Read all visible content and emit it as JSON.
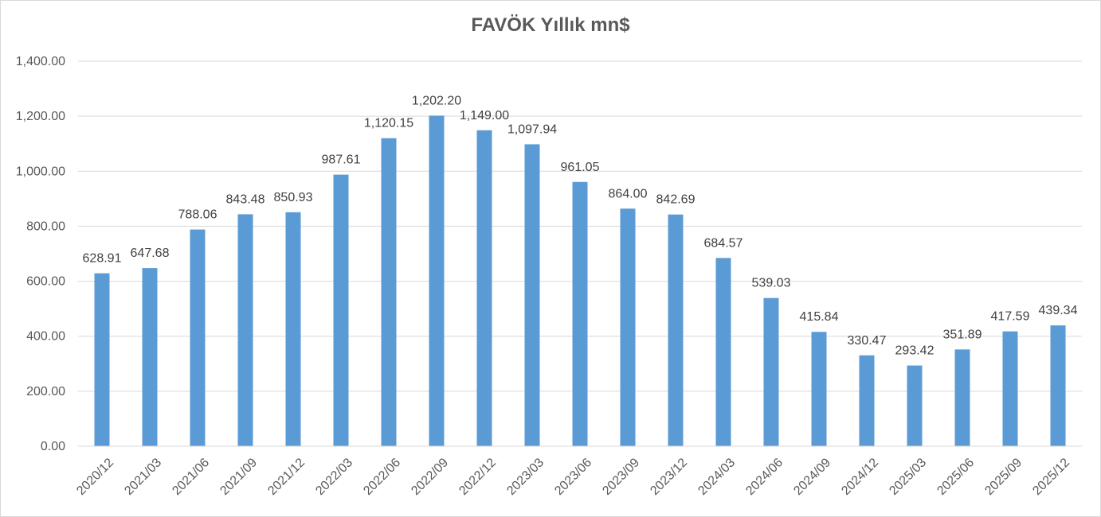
{
  "chart_data": {
    "type": "bar",
    "title": "FAVÖK Yıllık mn$",
    "xlabel": "",
    "ylabel": "",
    "ylim": [
      0,
      1400
    ],
    "yticks": [
      "0.00",
      "200.00",
      "400.00",
      "600.00",
      "800.00",
      "1,000.00",
      "1,200.00",
      "1,400.00"
    ],
    "grid": true,
    "legend": "none",
    "bar_color": "#5b9bd5",
    "categories": [
      "2020/12",
      "2021/03",
      "2021/06",
      "2021/09",
      "2021/12",
      "2022/03",
      "2022/06",
      "2022/09",
      "2022/12",
      "2023/03",
      "2023/06",
      "2023/09",
      "2023/12",
      "2024/03",
      "2024/06",
      "2024/09",
      "2024/12",
      "2025/03",
      "2025/06",
      "2025/09",
      "2025/12"
    ],
    "values": [
      628.91,
      647.68,
      788.06,
      843.48,
      850.93,
      987.61,
      1120.15,
      1202.2,
      1149.0,
      1097.94,
      961.05,
      864.0,
      842.69,
      684.57,
      539.03,
      415.84,
      330.47,
      293.42,
      351.89,
      417.59,
      439.34
    ],
    "data_labels": [
      "628.91",
      "647.68",
      "788.06",
      "843.48",
      "850.93",
      "987.61",
      "1,120.15",
      "1,202.20",
      "1,149.00",
      "1,097.94",
      "961.05",
      "864.00",
      "842.69",
      "684.57",
      "539.03",
      "415.84",
      "330.47",
      "293.42",
      "351.89",
      "417.59",
      "439.34"
    ]
  }
}
